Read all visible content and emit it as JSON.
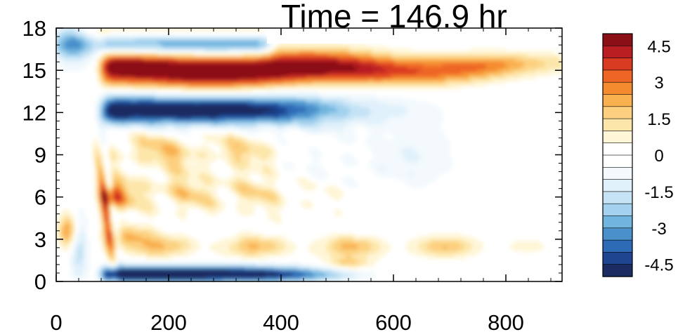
{
  "chart_data": {
    "type": "heatmap",
    "title": "Time = 146.9 hr",
    "xlabel": "",
    "ylabel": "",
    "xlim": [
      0,
      900
    ],
    "ylim": [
      0,
      18
    ],
    "x_ticks": [
      0,
      200,
      400,
      600,
      800
    ],
    "y_ticks": [
      0,
      3,
      6,
      9,
      12,
      15,
      18
    ],
    "x_tick_labels": [
      "0",
      "200",
      "400",
      "600",
      "800"
    ],
    "y_tick_labels": [
      "0",
      "3",
      "6",
      "9",
      "12",
      "15",
      "18"
    ],
    "colorbar": {
      "levels": [
        -5,
        -4.5,
        -4,
        -3.5,
        -3,
        -2.5,
        -2,
        -1.5,
        -1,
        -0.5,
        0,
        0.5,
        1,
        1.5,
        2,
        2.5,
        3,
        3.5,
        4,
        4.5,
        5
      ],
      "tick_labels": [
        "4.5",
        "3",
        "1.5",
        "0",
        "-1.5",
        "-3",
        "-4.5"
      ],
      "tick_values": [
        4.5,
        3,
        1.5,
        0,
        -1.5,
        -3,
        -4.5
      ],
      "colors": [
        "#1b2c62",
        "#1f4591",
        "#2e6bb6",
        "#4a90ca",
        "#71b4de",
        "#a3d1ee",
        "#c5e3f5",
        "#e1f1fb",
        "#f3f9fd",
        "#ffffff",
        "#ffffff",
        "#fff6d8",
        "#fde6aa",
        "#fcd07f",
        "#f9b04f",
        "#f58b2f",
        "#ee6526",
        "#d93a22",
        "#b81e22",
        "#8b1016"
      ]
    },
    "features": [
      {
        "label": "upper warm band",
        "x": [
          75,
          800
        ],
        "y_center": 15.1,
        "peak": 5.5
      },
      {
        "label": "cold band",
        "x": [
          85,
          560
        ],
        "y_center": 12.2,
        "peak": -5.3
      },
      {
        "label": "upper cold band",
        "x": [
          0,
          380
        ],
        "y_center": 16.8,
        "peak": -3.2
      },
      {
        "label": "mid warm region",
        "x": [
          75,
          520
        ],
        "y_range": [
          5,
          10
        ],
        "peak": 2.5
      },
      {
        "label": "weak cold region",
        "x": [
          420,
          760
        ],
        "y_range": [
          6.5,
          11
        ],
        "peak": -1.1
      },
      {
        "label": "low warm band",
        "x": [
          80,
          800
        ],
        "y_center": 2.5,
        "peak": 2.2
      },
      {
        "label": "bottom cold band",
        "x": [
          75,
          420
        ],
        "y_center": 0.6,
        "peak": -5.5
      },
      {
        "label": "onset front",
        "x": [
          20,
          90
        ],
        "y_range": [
          0,
          11
        ],
        "peak": 3.8
      }
    ]
  }
}
